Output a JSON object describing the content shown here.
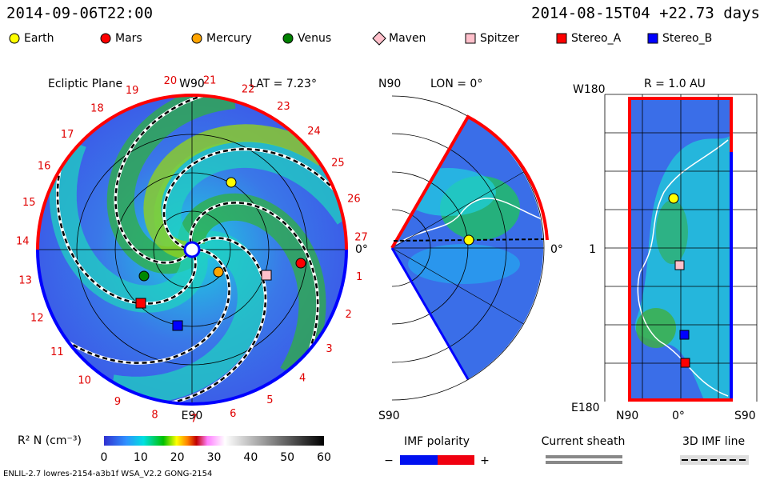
{
  "header": {
    "time": "2014-09-06T22:00",
    "reference": "2014-08-15T04 +22.73 days"
  },
  "legend": [
    {
      "label": "Earth",
      "color": "#ffff00",
      "shape": "circle"
    },
    {
      "label": "Mars",
      "color": "#ff0000",
      "shape": "circle"
    },
    {
      "label": "Mercury",
      "color": "#ffa500",
      "shape": "circle"
    },
    {
      "label": "Venus",
      "color": "#008000",
      "shape": "circle"
    },
    {
      "label": "Maven",
      "color": "#ffc0cb",
      "shape": "diamond"
    },
    {
      "label": "Spitzer",
      "color": "#ffc0cb",
      "shape": "square"
    },
    {
      "label": "Stereo_A",
      "color": "#ff0000",
      "shape": "square"
    },
    {
      "label": "Stereo_B",
      "color": "#0000ff",
      "shape": "square"
    }
  ],
  "ecliptic": {
    "title": "Ecliptic Plane",
    "top": "W90",
    "bottom": "E90",
    "lat": "LAT = 7.23°",
    "right": "0°",
    "sectors": [
      "1",
      "2",
      "3",
      "4",
      "5",
      "6",
      "7",
      "8",
      "9",
      "10",
      "11",
      "12",
      "13",
      "14",
      "15",
      "16",
      "17",
      "18",
      "19",
      "20",
      "21",
      "22",
      "23",
      "24",
      "25",
      "26",
      "27"
    ]
  },
  "meridional": {
    "top": "N90",
    "lon": "LON = 0°",
    "bottom": "S90",
    "right": "0°"
  },
  "radial": {
    "top_left": "W180",
    "title": "R = 1.0 AU",
    "middle_left": "1",
    "bottom_left": "E180",
    "x_labels": [
      "N90",
      "0°",
      "S90"
    ]
  },
  "colorbar": {
    "title": "R² N (cm⁻³)",
    "ticks": [
      "0",
      "10",
      "20",
      "30",
      "40",
      "50",
      "60"
    ]
  },
  "keys": {
    "polarity": "IMF polarity",
    "minus": "−",
    "plus": "+",
    "sheath": "Current sheath",
    "imf_line": "3D IMF line"
  },
  "footer": "ENLIL-2.7 lowres-2154-a3b1f WSA_V2.2 GONG-2154"
}
